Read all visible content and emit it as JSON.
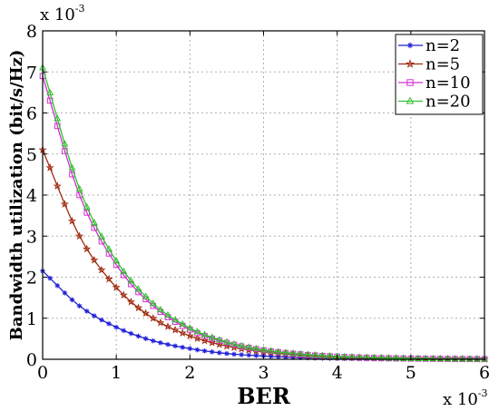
{
  "chart_data": {
    "type": "line",
    "xlabel": "BER",
    "ylabel": "Bandwidth utilization (bit/s/Hz)",
    "x_exponent_label": "x 10",
    "x_exponent_power": "-3",
    "y_exponent_label": "x 10",
    "y_exponent_power": "-3",
    "xlim": [
      0,
      6
    ],
    "ylim": [
      0,
      8
    ],
    "x_ticks": [
      "0",
      "1",
      "2",
      "3",
      "4",
      "5",
      "6"
    ],
    "y_ticks": [
      "0",
      "1",
      "2",
      "3",
      "4",
      "5",
      "6",
      "7",
      "8"
    ],
    "grid": true,
    "legend_position": "top-right",
    "x": [
      0,
      0.5,
      1,
      1.5,
      2,
      2.5,
      3,
      3.5,
      4,
      4.5,
      5,
      5.5,
      6
    ],
    "series": [
      {
        "name": "n=2",
        "color": "#1f1fd8",
        "marker": "star",
        "values": [
          2.15,
          1.3,
          0.78,
          0.45,
          0.26,
          0.14,
          0.08,
          0.04,
          0.02,
          0.01,
          0.005,
          0.003,
          0.002
        ]
      },
      {
        "name": "n=5",
        "color": "#a02a10",
        "marker": "pentagram",
        "values": [
          5.1,
          3.0,
          1.75,
          1.0,
          0.57,
          0.32,
          0.18,
          0.1,
          0.05,
          0.03,
          0.015,
          0.008,
          0.004
        ]
      },
      {
        "name": "n=10",
        "color": "#d030d0",
        "marker": "square",
        "values": [
          6.9,
          4.0,
          2.3,
          1.3,
          0.72,
          0.4,
          0.22,
          0.12,
          0.065,
          0.035,
          0.02,
          0.01,
          0.005
        ]
      },
      {
        "name": "n=20",
        "color": "#30c030",
        "marker": "triangle",
        "values": [
          7.1,
          4.15,
          2.4,
          1.36,
          0.76,
          0.42,
          0.23,
          0.13,
          0.07,
          0.04,
          0.02,
          0.01,
          0.005
        ]
      }
    ]
  }
}
